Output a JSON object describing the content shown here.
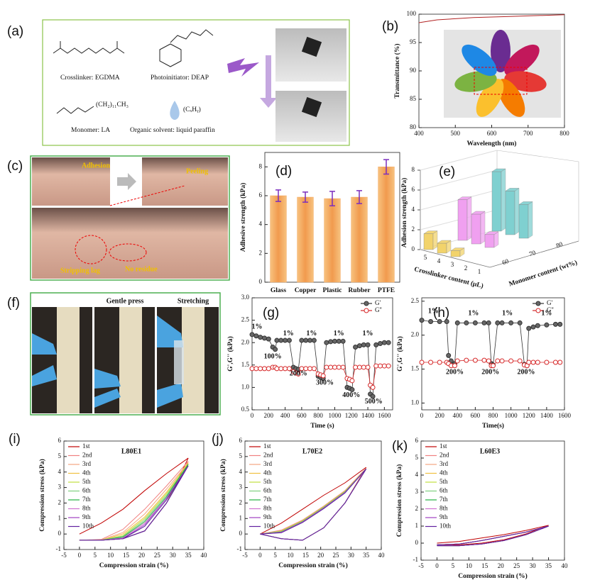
{
  "panels": {
    "a": {
      "label": "(a)",
      "crosslinker": "Crosslinker: EGDMA",
      "photoinitiator": "Photoinitiator: DEAP",
      "monomer": "Monomer: LA",
      "solvent": "Organic solvent: liquid paraffin",
      "chain": "(CH₂)₁₁CH₃",
      "formula": "(CₓHᵧ)"
    },
    "c": {
      "label": "(c)",
      "adhesion": "Adhesion",
      "peeling": "Peeling",
      "stripping": "Stripping lag",
      "residue": "No residue"
    },
    "f": {
      "label": "(f)",
      "press": "Gentle press",
      "stretch": "Stretching"
    }
  },
  "chart_data": [
    {
      "type": "line",
      "label": "(b)",
      "xlabel": "Wavelength (nm)",
      "ylabel": "Transmittance (%)",
      "x": [
        400,
        450,
        500,
        550,
        600,
        650,
        700,
        750,
        800
      ],
      "series": [
        {
          "name": null,
          "color": "#b22222",
          "values": [
            98.5,
            99,
            99.2,
            99.4,
            99.5,
            99.6,
            99.7,
            99.8,
            99.9
          ]
        }
      ],
      "xlim": [
        400,
        800
      ],
      "xticks": [
        400,
        500,
        600,
        700,
        800
      ],
      "ylim": [
        80,
        100
      ],
      "yticks": [
        80,
        85,
        90,
        95,
        100
      ]
    },
    {
      "type": "bar",
      "label": "(d)",
      "ylabel": "Adhesive strength (kPa)",
      "categories": [
        "Glass",
        "Copper",
        "Plastic",
        "Rubber",
        "PTFE"
      ],
      "values": [
        6.0,
        5.9,
        5.8,
        5.9,
        8.0
      ],
      "errors": [
        0.4,
        0.35,
        0.5,
        0.45,
        0.5
      ],
      "color": "#f5a962",
      "error_color": "#7b2fbe",
      "ylim": [
        0,
        9
      ],
      "yticks": [
        0,
        2,
        4,
        6,
        8
      ]
    },
    {
      "type": "bar3d",
      "label": "(e)",
      "zlabel": "Adhesion strength (kPa)",
      "xlabel": "Crosslinker content (μL)",
      "ylabel": "Monomer content (wt%)",
      "crosslinker_labels": [
        "5",
        "4",
        "3",
        "2",
        "1"
      ],
      "series": [
        {
          "name": "60",
          "color": "#f2d36b",
          "values": [
            1.6,
            1.0,
            0.6
          ]
        },
        {
          "name": "70",
          "color": "#f0a0f0",
          "values": [
            4.1,
            3.0,
            1.3
          ]
        },
        {
          "name": "80",
          "color": "#7fd0d0",
          "values": [
            6.0,
            4.4,
            3.4
          ]
        }
      ],
      "zlim": [
        0,
        8
      ],
      "zticks": [
        0,
        2,
        4,
        6,
        8
      ]
    },
    {
      "type": "line",
      "label": "(g)",
      "xlabel": "Time (s)",
      "ylabel": "G',G'' (kPa)",
      "legend": "upper right",
      "markers": true,
      "x": [
        0,
        50,
        100,
        150,
        200,
        250,
        280,
        300,
        350,
        400,
        450,
        500,
        530,
        560,
        600,
        650,
        700,
        750,
        800,
        830,
        860,
        900,
        950,
        1000,
        1050,
        1100,
        1150,
        1180,
        1210,
        1250,
        1300,
        1350,
        1400,
        1430,
        1460,
        1500,
        1550,
        1600,
        1650
      ],
      "series": [
        {
          "name": "G'",
          "color": "#333333",
          "marker_fill": "#666666",
          "values": [
            2.18,
            2.15,
            2.12,
            2.1,
            2.08,
            1.9,
            1.85,
            2.05,
            2.05,
            2.05,
            2.05,
            1.45,
            1.42,
            1.4,
            2.05,
            2.05,
            2.05,
            2.05,
            1.25,
            1.22,
            1.2,
            2.0,
            2.02,
            2.03,
            2.03,
            2.03,
            1.0,
            0.98,
            0.95,
            1.9,
            1.93,
            1.95,
            1.95,
            0.85,
            0.8,
            1.95,
            1.98,
            2.0,
            2.0
          ]
        },
        {
          "name": "G''",
          "color": "#d62728",
          "marker_fill": "#ffffff",
          "values": [
            1.42,
            1.42,
            1.42,
            1.42,
            1.42,
            1.45,
            1.45,
            1.42,
            1.42,
            1.42,
            1.42,
            1.35,
            1.32,
            1.3,
            1.42,
            1.42,
            1.42,
            1.42,
            1.3,
            1.28,
            1.26,
            1.45,
            1.45,
            1.45,
            1.45,
            1.45,
            1.2,
            1.18,
            1.15,
            1.45,
            1.45,
            1.45,
            1.45,
            1.05,
            1.0,
            1.48,
            1.48,
            1.48,
            1.48
          ]
        }
      ],
      "annotations": [
        "1%",
        "100%",
        "1%",
        "200%",
        "1%",
        "300%",
        "1%",
        "400%",
        "1%",
        "500%"
      ],
      "xlim": [
        0,
        1700
      ],
      "xticks": [
        0,
        200,
        400,
        600,
        800,
        1000,
        1200,
        1400,
        1600
      ],
      "ylim": [
        0.5,
        3.0
      ],
      "yticks": [
        0.5,
        {
          "value": 1,
          "label": "1.0"
        },
        1.5,
        {
          "value": 2,
          "label": "2.0"
        },
        2.5,
        {
          "value": 3,
          "label": "3.0"
        }
      ]
    },
    {
      "type": "line",
      "label": "(h)",
      "xlabel": "Time(s)",
      "ylabel": "G',G'' (kPa)",
      "legend": "upper right",
      "markers": true,
      "x": [
        0,
        100,
        200,
        280,
        300,
        330,
        370,
        400,
        500,
        600,
        700,
        750,
        780,
        800,
        850,
        900,
        1000,
        1100,
        1150,
        1180,
        1200,
        1250,
        1300,
        1400,
        1500,
        1550
      ],
      "series": [
        {
          "name": "G'",
          "color": "#333333",
          "marker_fill": "#666666",
          "values": [
            2.22,
            2.2,
            2.2,
            2.2,
            1.7,
            1.62,
            1.58,
            2.18,
            2.18,
            2.18,
            2.18,
            2.18,
            1.58,
            1.56,
            2.18,
            2.18,
            2.18,
            2.18,
            1.57,
            1.55,
            2.1,
            2.12,
            2.14,
            2.15,
            2.16,
            2.16
          ]
        },
        {
          "name": "G''",
          "color": "#d62728",
          "marker_fill": "#ffffff",
          "values": [
            1.6,
            1.6,
            1.6,
            1.6,
            1.58,
            1.55,
            1.55,
            1.62,
            1.63,
            1.63,
            1.63,
            1.62,
            1.55,
            1.55,
            1.62,
            1.62,
            1.62,
            1.62,
            1.56,
            1.55,
            1.6,
            1.6,
            1.6,
            1.6,
            1.6,
            1.6
          ]
        }
      ],
      "annotations": [
        "1%",
        "200%",
        "1%",
        "200%",
        "1%",
        "200%",
        "1%"
      ],
      "xlim": [
        0,
        1600
      ],
      "xticks": [
        0,
        200,
        400,
        600,
        800,
        1000,
        1200,
        1400,
        1600
      ],
      "ylim": [
        0.9,
        2.55
      ],
      "yticks": [
        {
          "value": 1,
          "label": "1.0"
        },
        1.5,
        {
          "value": 2,
          "label": "2.0"
        },
        2.5
      ]
    },
    {
      "type": "line",
      "label": "(i)",
      "title": "L80E1",
      "xlabel": "Compression strain (%)",
      "ylabel": "Compression stress (kPa)",
      "legend": "upper left",
      "x": [
        0,
        7,
        14,
        21,
        28,
        35,
        28,
        21,
        14,
        7,
        0
      ],
      "series": [
        {
          "name": "1st",
          "color": "#c00000",
          "values": [
            0,
            0.7,
            1.6,
            2.8,
            3.9,
            4.9,
            2.0,
            0.2,
            -0.3,
            -0.4,
            -0.4
          ]
        },
        {
          "name": "2nd",
          "color": "#f08080",
          "values": [
            -0.4,
            -0.35,
            0.3,
            1.6,
            3.1,
            4.7,
            2.0,
            0.2,
            -0.3,
            -0.4,
            -0.4
          ]
        },
        {
          "name": "3rd",
          "color": "#f4a582",
          "values": [
            -0.4,
            -0.38,
            0.1,
            1.3,
            2.9,
            4.6,
            2.0,
            0.2,
            -0.3,
            -0.4,
            -0.4
          ]
        },
        {
          "name": "4th",
          "color": "#f0c040",
          "values": [
            -0.4,
            -0.4,
            0,
            1.1,
            2.7,
            4.6,
            2.0,
            0.2,
            -0.3,
            -0.4,
            -0.4
          ]
        },
        {
          "name": "5th",
          "color": "#c0e040",
          "values": [
            -0.4,
            -0.4,
            -0.1,
            1.0,
            2.6,
            4.5,
            2.0,
            0.2,
            -0.3,
            -0.4,
            -0.4
          ]
        },
        {
          "name": "6th",
          "color": "#80d080",
          "values": [
            -0.4,
            -0.4,
            -0.15,
            0.9,
            2.5,
            4.5,
            2.0,
            0.2,
            -0.3,
            -0.4,
            -0.4
          ]
        },
        {
          "name": "7th",
          "color": "#20b040",
          "values": [
            -0.4,
            -0.4,
            -0.2,
            0.8,
            2.4,
            4.5,
            2.0,
            0.2,
            -0.3,
            -0.4,
            -0.4
          ]
        },
        {
          "name": "8th",
          "color": "#d070d0",
          "values": [
            -0.4,
            -0.4,
            -0.25,
            0.7,
            2.3,
            4.4,
            2.0,
            0.2,
            -0.3,
            -0.4,
            -0.4
          ]
        },
        {
          "name": "9th",
          "color": "#a040c0",
          "values": [
            -0.4,
            -0.4,
            -0.3,
            0.6,
            2.3,
            4.4,
            2.0,
            0.2,
            -0.3,
            -0.4,
            -0.4
          ]
        },
        {
          "name": "10th",
          "color": "#6020a0",
          "values": [
            -0.4,
            -0.4,
            -0.3,
            0.5,
            2.2,
            4.4,
            2.0,
            0.2,
            -0.3,
            -0.4,
            -0.4
          ]
        }
      ],
      "xlim": [
        -5,
        40
      ],
      "xticks": [
        -5,
        0,
        5,
        10,
        15,
        20,
        25,
        30,
        35,
        40
      ],
      "ylim": [
        -1,
        6
      ],
      "yticks": [
        -1,
        0,
        1,
        2,
        3,
        4,
        5,
        6
      ]
    },
    {
      "type": "line",
      "label": "(j)",
      "title": "L70E2",
      "xlabel": "Compression strain (%)",
      "ylabel": "Compression stress (kPa)",
      "legend": "upper left",
      "x": [
        0,
        7,
        14,
        21,
        28,
        35,
        28,
        21,
        14,
        7,
        0
      ],
      "series": [
        {
          "name": "1st",
          "color": "#c00000",
          "values": [
            0,
            0.7,
            1.6,
            2.5,
            3.3,
            4.3,
            2.0,
            0.4,
            -0.4,
            -0.3,
            0
          ]
        },
        {
          "name": "2nd",
          "color": "#f08080",
          "values": [
            0,
            0.25,
            0.9,
            1.8,
            2.8,
            4.25,
            2.0,
            0.4,
            -0.4,
            -0.3,
            0
          ]
        },
        {
          "name": "3rd",
          "color": "#f4a582",
          "values": [
            0,
            0.22,
            0.88,
            1.78,
            2.78,
            4.25,
            2.0,
            0.4,
            -0.4,
            -0.3,
            0
          ]
        },
        {
          "name": "4th",
          "color": "#f0c040",
          "values": [
            0,
            0.2,
            0.86,
            1.76,
            2.76,
            4.2,
            2.0,
            0.4,
            -0.4,
            -0.3,
            0
          ]
        },
        {
          "name": "5th",
          "color": "#c0e040",
          "values": [
            0,
            0.18,
            0.84,
            1.74,
            2.74,
            4.2,
            2.0,
            0.4,
            -0.4,
            -0.3,
            0
          ]
        },
        {
          "name": "6th",
          "color": "#80d080",
          "values": [
            0,
            0.16,
            0.82,
            1.72,
            2.72,
            4.2,
            2.0,
            0.4,
            -0.4,
            -0.3,
            0
          ]
        },
        {
          "name": "7th",
          "color": "#20b040",
          "values": [
            0,
            0.14,
            0.8,
            1.7,
            2.7,
            4.2,
            2.0,
            0.4,
            -0.4,
            -0.3,
            0
          ]
        },
        {
          "name": "8th",
          "color": "#d070d0",
          "values": [
            0,
            0.12,
            0.78,
            1.68,
            2.68,
            4.2,
            2.0,
            0.4,
            -0.4,
            -0.3,
            0
          ]
        },
        {
          "name": "9th",
          "color": "#a040c0",
          "values": [
            0,
            0.1,
            0.76,
            1.66,
            2.66,
            4.2,
            2.0,
            0.4,
            -0.4,
            -0.3,
            0
          ]
        },
        {
          "name": "10th",
          "color": "#6020a0",
          "values": [
            0,
            0.08,
            0.74,
            1.64,
            2.64,
            4.2,
            2.0,
            0.4,
            -0.4,
            -0.3,
            0
          ]
        }
      ],
      "xlim": [
        -5,
        40
      ],
      "xticks": [
        -5,
        0,
        5,
        10,
        15,
        20,
        25,
        30,
        35,
        40
      ],
      "ylim": [
        -1,
        6
      ],
      "yticks": [
        -1,
        0,
        1,
        2,
        3,
        4,
        5,
        6
      ]
    },
    {
      "type": "line",
      "label": "(k)",
      "title": "L60E3",
      "xlabel": "Compression strain (%)",
      "ylabel": "Compression stress (kPa)",
      "legend": "upper left",
      "x": [
        0,
        7,
        14,
        21,
        28,
        35,
        28,
        21,
        14,
        7,
        0
      ],
      "series": [
        {
          "name": "1st",
          "color": "#c00000",
          "values": [
            0,
            0.1,
            0.3,
            0.5,
            0.75,
            1.05,
            0.55,
            0.2,
            0,
            -0.1,
            -0.1
          ]
        },
        {
          "name": "2nd",
          "color": "#f08080",
          "values": [
            -0.1,
            -0.05,
            0.15,
            0.4,
            0.65,
            1.0,
            0.5,
            0.15,
            -0.05,
            -0.15,
            -0.15
          ]
        },
        {
          "name": "3rd",
          "color": "#f4a582",
          "values": [
            -0.1,
            -0.05,
            0.15,
            0.4,
            0.65,
            1.0,
            0.5,
            0.15,
            -0.05,
            -0.15,
            -0.15
          ]
        },
        {
          "name": "4th",
          "color": "#f0c040",
          "values": [
            -0.1,
            -0.05,
            0.15,
            0.4,
            0.65,
            1.0,
            0.5,
            0.15,
            -0.05,
            -0.15,
            -0.15
          ]
        },
        {
          "name": "5th",
          "color": "#c0e040",
          "values": [
            -0.1,
            -0.05,
            0.15,
            0.4,
            0.65,
            1.0,
            0.5,
            0.15,
            -0.05,
            -0.15,
            -0.15
          ]
        },
        {
          "name": "6th",
          "color": "#80d080",
          "values": [
            -0.1,
            -0.05,
            0.15,
            0.4,
            0.65,
            1.0,
            0.5,
            0.15,
            -0.05,
            -0.15,
            -0.15
          ]
        },
        {
          "name": "7th",
          "color": "#20b040",
          "values": [
            -0.1,
            -0.05,
            0.15,
            0.4,
            0.65,
            1.0,
            0.5,
            0.15,
            -0.05,
            -0.15,
            -0.15
          ]
        },
        {
          "name": "8th",
          "color": "#d070d0",
          "values": [
            -0.1,
            -0.05,
            0.15,
            0.4,
            0.65,
            1.0,
            0.5,
            0.15,
            -0.05,
            -0.15,
            -0.15
          ]
        },
        {
          "name": "9th",
          "color": "#a040c0",
          "values": [
            -0.1,
            -0.05,
            0.15,
            0.4,
            0.65,
            1.0,
            0.5,
            0.15,
            -0.05,
            -0.15,
            -0.15
          ]
        },
        {
          "name": "10th",
          "color": "#6020a0",
          "values": [
            -0.1,
            -0.05,
            0.15,
            0.4,
            0.65,
            1.0,
            0.5,
            0.15,
            -0.05,
            -0.15,
            -0.15
          ]
        }
      ],
      "xlim": [
        -5,
        40
      ],
      "xticks": [
        -5,
        0,
        5,
        10,
        15,
        20,
        25,
        30,
        35,
        40
      ],
      "ylim": [
        -1,
        6
      ],
      "yticks": [
        -1,
        0,
        1,
        2,
        3,
        4,
        5,
        6
      ]
    }
  ]
}
